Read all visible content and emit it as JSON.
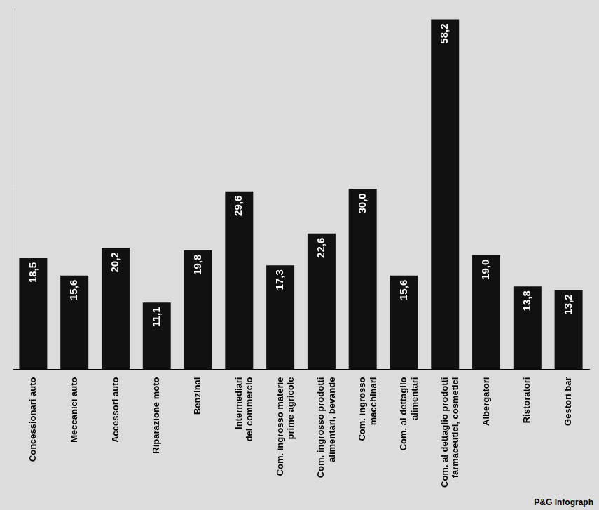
{
  "chart_data": {
    "type": "bar",
    "categories": [
      "Concessionari auto",
      "Meccanici auto",
      "Accessori auto",
      "Riparazione moto",
      "Benzinai",
      "Intermediari del commercio",
      "Com. ingrosso materie prime agricole",
      "Com. ingrosso prodotti alimentari, bevande",
      "Com. ingrosso macchinari",
      "Com. al dettaglio alimentari",
      "Com. al dettaglio prodotti farmaceutici, cosmetici",
      "Albergatori",
      "Ristoratori",
      "Gestori bar"
    ],
    "values": [
      18.5,
      15.6,
      20.2,
      11.1,
      19.8,
      29.6,
      17.3,
      22.6,
      30.0,
      15.6,
      58.2,
      19.0,
      13.8,
      13.2
    ],
    "value_labels": [
      "18,5",
      "15,6",
      "20,2",
      "11,1",
      "19,8",
      "29,6",
      "17,3",
      "22,6",
      "30,0",
      "15,6",
      "58,2",
      "19,0",
      "13,8",
      "13,2"
    ],
    "color": "#111111",
    "ylim": [
      0,
      60
    ],
    "grid": false,
    "data_labels": true,
    "tick_labels": "x",
    "annotation": "P&G Infograph"
  }
}
